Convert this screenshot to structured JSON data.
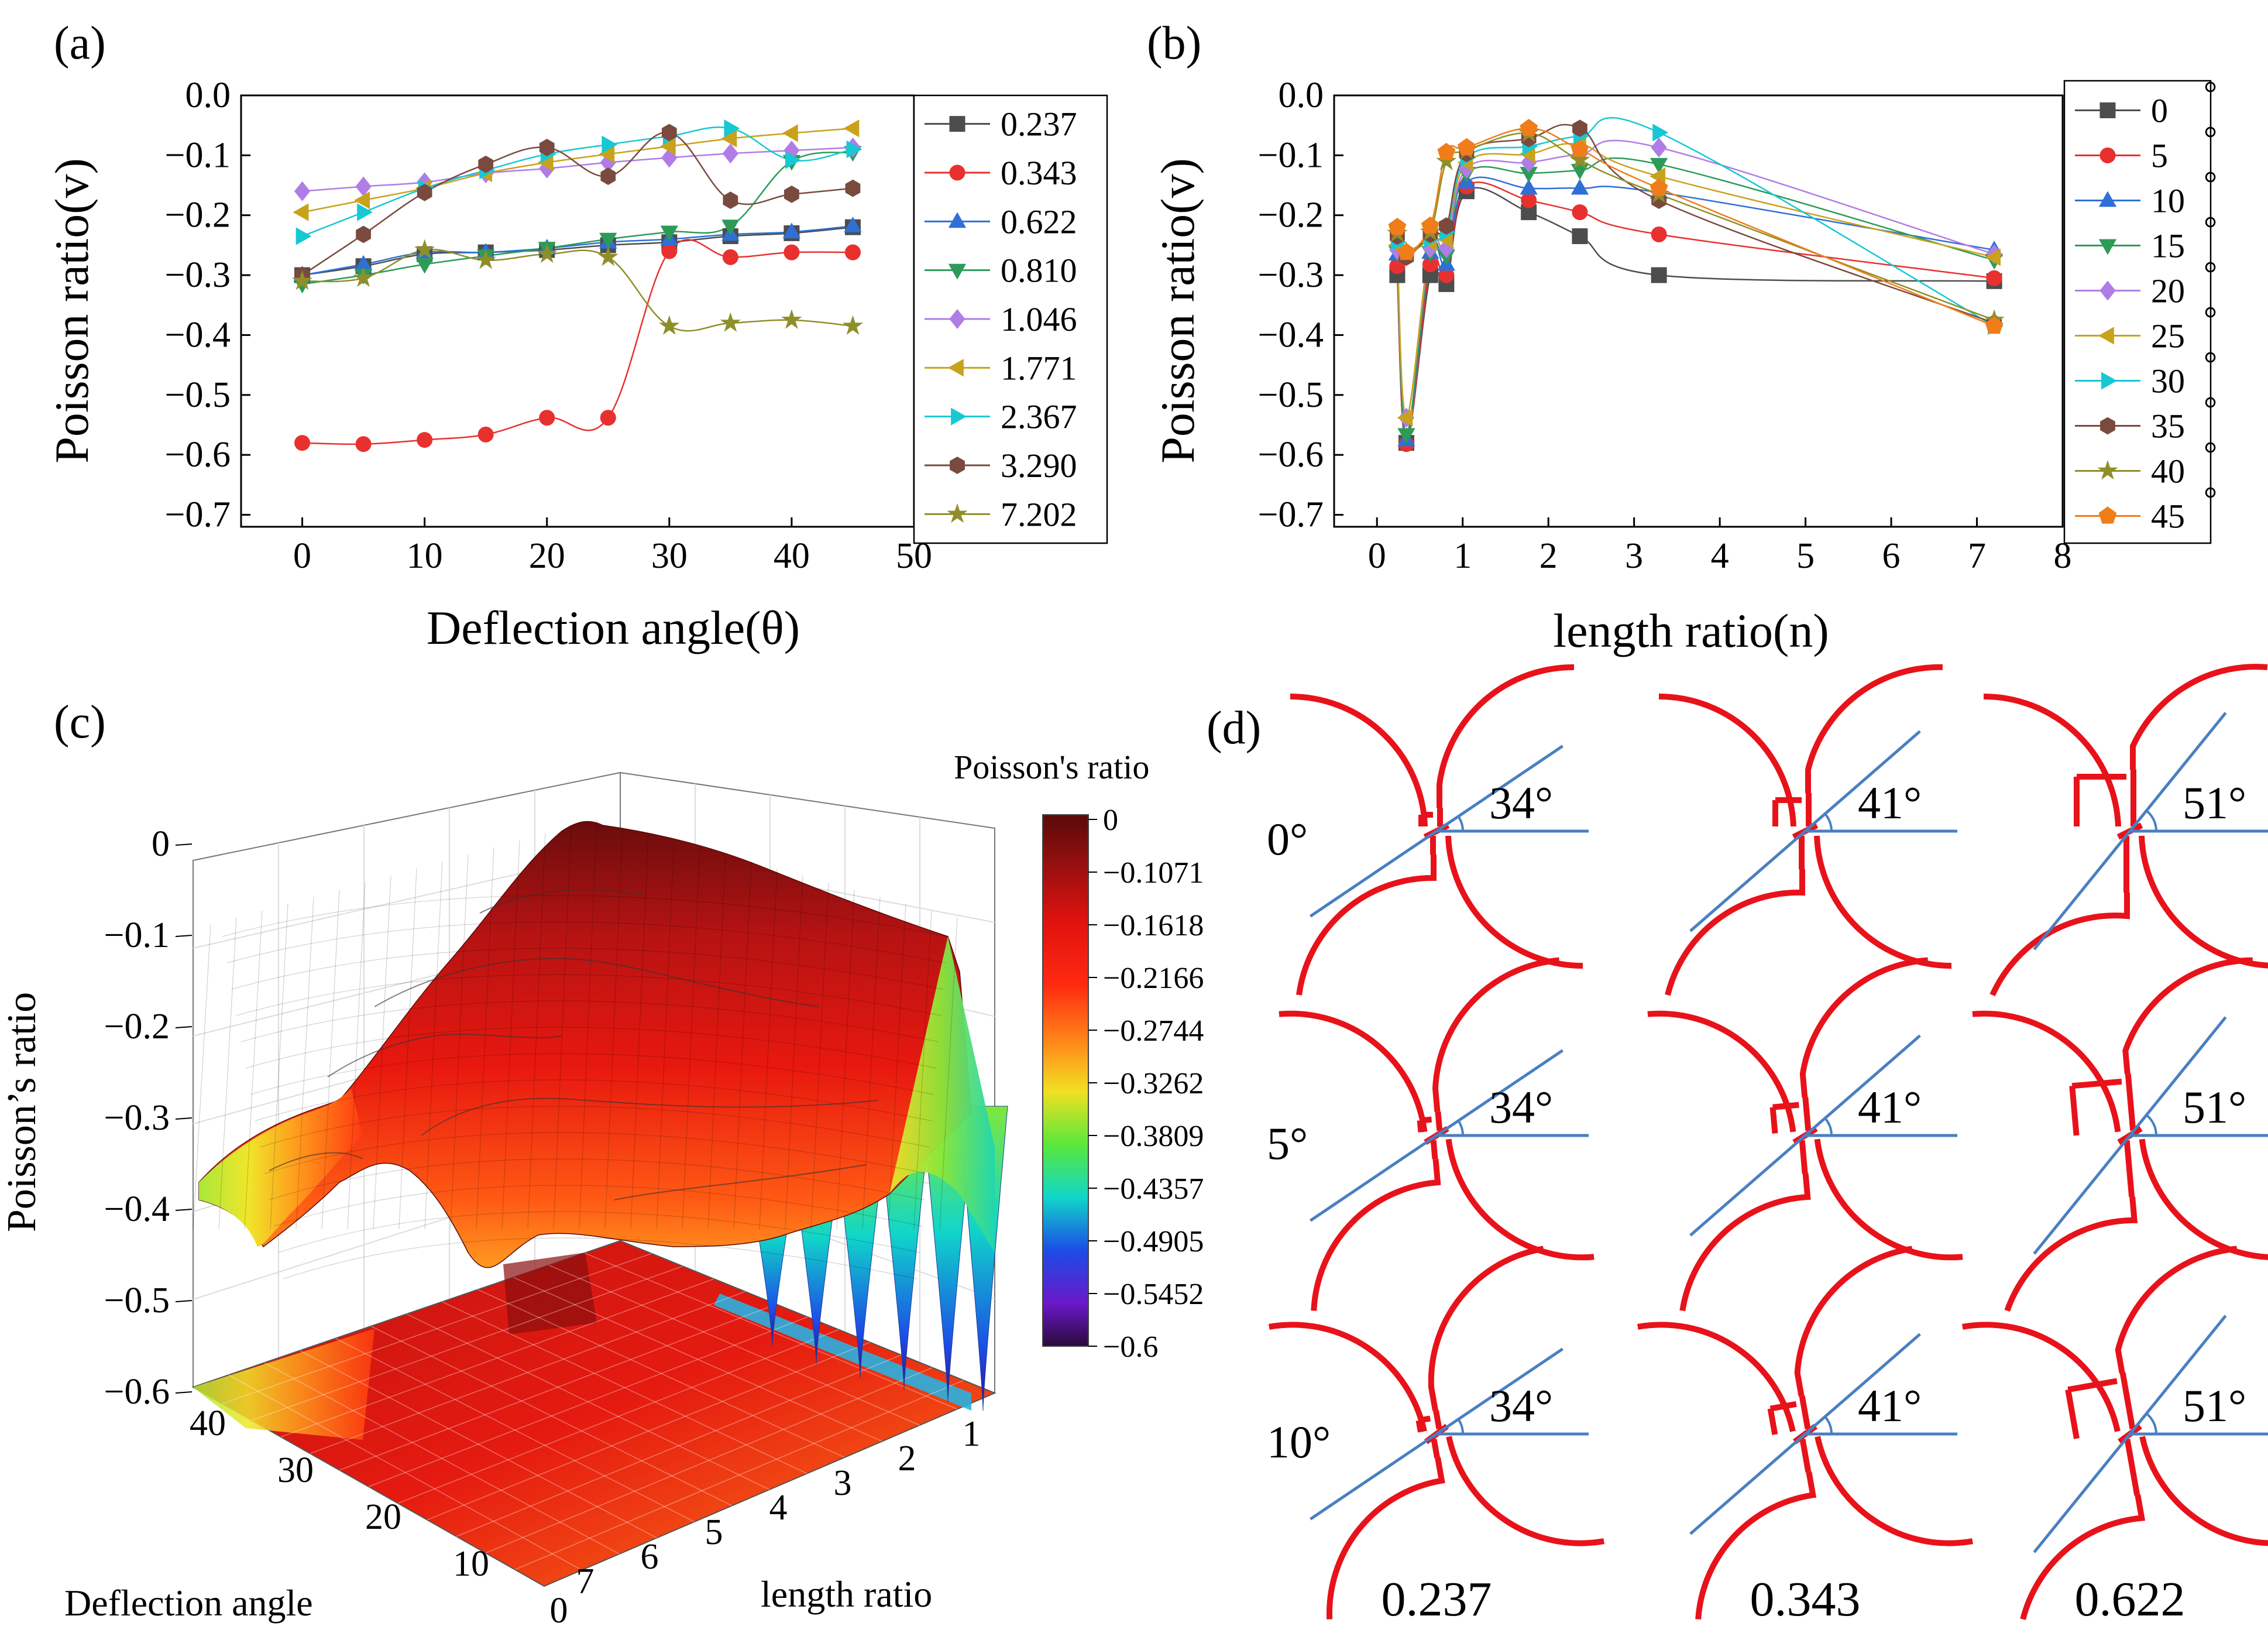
{
  "panels": {
    "a": "(a)",
    "b": "(b)",
    "c": "(c)",
    "d": "(d)"
  },
  "chart_data": [
    {
      "id": "a",
      "type": "line",
      "xlabel": "Deflection angle(θ)",
      "ylabel": "Poisson ratio(v)",
      "xlim": [
        -5,
        50
      ],
      "ylim": [
        -0.72,
        0.0
      ],
      "xticks": [
        0,
        10,
        20,
        30,
        40,
        50
      ],
      "xtick_labels": [
        "0",
        "10",
        "20",
        "30",
        "40",
        "50"
      ],
      "yticks": [
        0.0,
        -0.1,
        -0.2,
        -0.3,
        -0.4,
        -0.5,
        -0.6,
        -0.7
      ],
      "ytick_labels": [
        "0.0",
        "−0.1",
        "−0.2",
        "−0.3",
        "−0.4",
        "−0.5",
        "−0.6",
        "−0.7"
      ],
      "legend_position": "right",
      "x": [
        0,
        5,
        10,
        15,
        20,
        25,
        30,
        35,
        40,
        45
      ],
      "series": [
        {
          "name": "0.237",
          "color": "#4d4d4d",
          "marker": "square",
          "values": [
            -0.3,
            -0.285,
            -0.265,
            -0.262,
            -0.258,
            -0.25,
            -0.245,
            -0.235,
            -0.23,
            -0.22
          ]
        },
        {
          "name": "0.343",
          "color": "#e8312f",
          "marker": "circle",
          "values": [
            -0.58,
            -0.582,
            -0.575,
            -0.566,
            -0.538,
            -0.538,
            -0.26,
            -0.27,
            -0.262,
            -0.262
          ]
        },
        {
          "name": "0.622",
          "color": "#2f6fd6",
          "marker": "triangle-up",
          "values": [
            -0.3,
            -0.282,
            -0.262,
            -0.262,
            -0.255,
            -0.245,
            -0.24,
            -0.232,
            -0.228,
            -0.218
          ]
        },
        {
          "name": "0.810",
          "color": "#2c9b58",
          "marker": "triangle-down",
          "values": [
            -0.315,
            -0.3,
            -0.282,
            -0.268,
            -0.255,
            -0.24,
            -0.228,
            -0.218,
            -0.11,
            -0.095
          ]
        },
        {
          "name": "1.046",
          "color": "#b07de6",
          "marker": "diamond",
          "values": [
            -0.16,
            -0.152,
            -0.145,
            -0.13,
            -0.122,
            -0.112,
            -0.104,
            -0.097,
            -0.092,
            -0.087
          ]
        },
        {
          "name": "1.771",
          "color": "#c9a21c",
          "marker": "triangle-left",
          "values": [
            -0.195,
            -0.175,
            -0.155,
            -0.13,
            -0.112,
            -0.098,
            -0.085,
            -0.072,
            -0.063,
            -0.055
          ]
        },
        {
          "name": "2.367",
          "color": "#16c8d4",
          "marker": "triangle-right",
          "values": [
            -0.235,
            -0.195,
            -0.155,
            -0.125,
            -0.098,
            -0.082,
            -0.068,
            -0.055,
            -0.108,
            -0.09
          ]
        },
        {
          "name": "3.290",
          "color": "#7a4a3f",
          "marker": "hexagon",
          "values": [
            -0.3,
            -0.232,
            -0.162,
            -0.115,
            -0.087,
            -0.135,
            -0.062,
            -0.175,
            -0.165,
            -0.155
          ]
        },
        {
          "name": "7.202",
          "color": "#8f8f2a",
          "marker": "star",
          "values": [
            -0.31,
            -0.305,
            -0.258,
            -0.275,
            -0.265,
            -0.27,
            -0.385,
            -0.38,
            -0.375,
            -0.385
          ]
        }
      ]
    },
    {
      "id": "b",
      "type": "line",
      "xlabel": "length ratio(n)",
      "ylabel": "Poisson ratio(v)",
      "xlim": [
        -0.5,
        8
      ],
      "ylim": [
        -0.72,
        0.0
      ],
      "xticks": [
        0,
        1,
        2,
        3,
        4,
        5,
        6,
        7,
        8
      ],
      "xtick_labels": [
        "0",
        "1",
        "2",
        "3",
        "4",
        "5",
        "6",
        "7",
        "8"
      ],
      "yticks": [
        0.0,
        -0.1,
        -0.2,
        -0.3,
        -0.4,
        -0.5,
        -0.6,
        -0.7
      ],
      "ytick_labels": [
        "0.0",
        "−0.1",
        "−0.2",
        "−0.3",
        "−0.4",
        "−0.5",
        "−0.6",
        "−0.7"
      ],
      "legend_position": "right",
      "legend_suffix": "°",
      "x": [
        0.237,
        0.343,
        0.622,
        0.81,
        1.046,
        1.771,
        2.367,
        3.29,
        7.202
      ],
      "series": [
        {
          "name": "0",
          "color": "#4d4d4d",
          "marker": "square",
          "values": [
            -0.3,
            -0.58,
            -0.3,
            -0.315,
            -0.16,
            -0.195,
            -0.235,
            -0.3,
            -0.31
          ]
        },
        {
          "name": "5",
          "color": "#e8312f",
          "marker": "circle",
          "values": [
            -0.285,
            -0.582,
            -0.282,
            -0.3,
            -0.152,
            -0.175,
            -0.195,
            -0.232,
            -0.305
          ]
        },
        {
          "name": "10",
          "color": "#2f6fd6",
          "marker": "triangle-up",
          "values": [
            -0.265,
            -0.575,
            -0.262,
            -0.282,
            -0.145,
            -0.155,
            -0.155,
            -0.162,
            -0.258
          ]
        },
        {
          "name": "15",
          "color": "#2c9b58",
          "marker": "triangle-down",
          "values": [
            -0.262,
            -0.566,
            -0.262,
            -0.268,
            -0.13,
            -0.13,
            -0.125,
            -0.115,
            -0.275
          ]
        },
        {
          "name": "20",
          "color": "#b07de6",
          "marker": "diamond",
          "values": [
            -0.258,
            -0.538,
            -0.255,
            -0.255,
            -0.122,
            -0.112,
            -0.098,
            -0.087,
            -0.265
          ]
        },
        {
          "name": "25",
          "color": "#c9a21c",
          "marker": "triangle-left",
          "values": [
            -0.25,
            -0.538,
            -0.245,
            -0.24,
            -0.112,
            -0.098,
            -0.082,
            -0.135,
            -0.27
          ]
        },
        {
          "name": "30",
          "color": "#16c8d4",
          "marker": "triangle-right",
          "values": [
            -0.245,
            -0.26,
            -0.24,
            -0.228,
            -0.104,
            -0.085,
            -0.068,
            -0.062,
            -0.385
          ]
        },
        {
          "name": "35",
          "color": "#7a4a3f",
          "marker": "hexagon",
          "values": [
            -0.235,
            -0.27,
            -0.232,
            -0.218,
            -0.097,
            -0.072,
            -0.055,
            -0.175,
            -0.38
          ]
        },
        {
          "name": "40",
          "color": "#8f8f2a",
          "marker": "star",
          "values": [
            -0.23,
            -0.262,
            -0.228,
            -0.11,
            -0.092,
            -0.063,
            -0.108,
            -0.165,
            -0.375
          ]
        },
        {
          "name": "45",
          "color": "#f07d1a",
          "marker": "pentagon",
          "values": [
            -0.22,
            -0.262,
            -0.218,
            -0.095,
            -0.087,
            -0.055,
            -0.09,
            -0.155,
            -0.385
          ]
        }
      ]
    },
    {
      "id": "c",
      "type": "heatmap",
      "title": "",
      "zlabel": "Poisson’s ratio",
      "xlabel": "length ratio",
      "ylabel": "Deflection angle",
      "zticks": [
        "0",
        "−0.1",
        "−0.2",
        "−0.3",
        "−0.4",
        "−0.5",
        "−0.6"
      ],
      "angle_ticks": [
        "40",
        "30",
        "20",
        "10",
        "0"
      ],
      "length_ticks": [
        "1",
        "2",
        "3",
        "4",
        "5",
        "6",
        "7"
      ],
      "colorbar_title": "Poisson's ratio",
      "colorbar_ticks": [
        "0",
        "−0.1071",
        "−0.1618",
        "−0.2166",
        "−0.2744",
        "−0.3262",
        "−0.3809",
        "−0.4357",
        "−0.4905",
        "−0.5452",
        "−0.6"
      ],
      "colorbar_range": [
        -0.6,
        0
      ]
    }
  ],
  "panel_d": {
    "row_labels": [
      "0°",
      "5°",
      "10°"
    ],
    "col_labels": [
      "0.237",
      "0.343",
      "0.622"
    ],
    "angles": [
      "34°",
      "41°",
      "51°"
    ],
    "colors": {
      "arc": "#e8121a",
      "line": "#4a7fc1"
    }
  }
}
